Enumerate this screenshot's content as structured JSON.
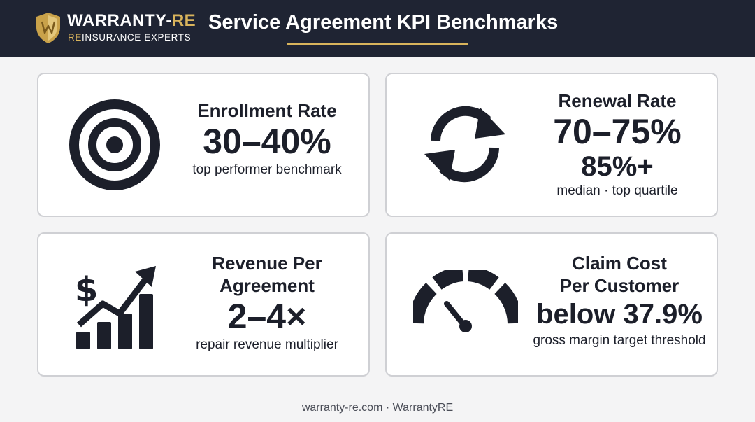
{
  "header": {
    "brand_name_main": "WARRANTY-",
    "brand_name_accent": "RE",
    "brand_tagline_accent": "RE",
    "brand_tagline_rest": "INSURANCE EXPERTS",
    "title": "Service Agreement KPI Benchmarks",
    "accent_color": "#d9b45c",
    "background_color": "#1f2433"
  },
  "cards": {
    "enrollment": {
      "icon": "target-icon",
      "label": "Enrollment Rate",
      "value": "30–40%",
      "description": "top performer benchmark"
    },
    "renewal": {
      "icon": "refresh-cycle-icon",
      "label": "Renewal Rate",
      "value": "70–75%",
      "value_secondary": "85%+",
      "description": "median · top quartile"
    },
    "revenue": {
      "icon": "dollar-growth-chart-icon",
      "label_line1": "Revenue Per",
      "label_line2": "Agreement",
      "value": "2–4×",
      "description": "repair revenue multiplier"
    },
    "claim": {
      "icon": "speedometer-gauge-icon",
      "label_line1": "Claim Cost",
      "label_line2": "Per Customer",
      "value": "below 37.9%",
      "description": "gross margin target threshold"
    }
  },
  "footer": {
    "text": "warranty-re.com · WarrantyRE"
  }
}
